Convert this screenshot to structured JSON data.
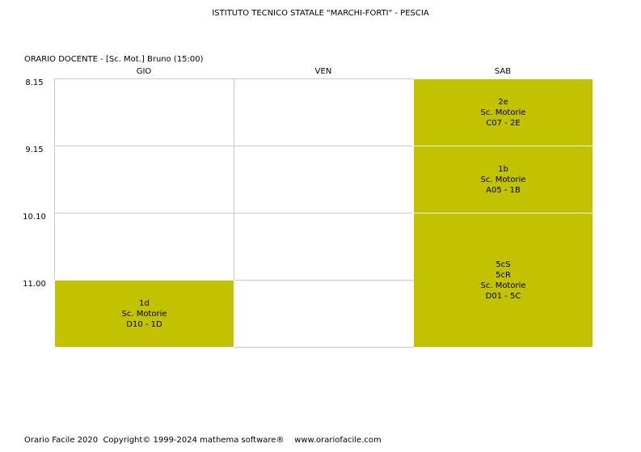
{
  "header": {
    "school": "ISTITUTO TECNICO STATALE \"MARCHI-FORTI\" - PESCIA",
    "teacher_line": "ORARIO DOCENTE   -   [Sc. Mot.] Bruno  (15:00)"
  },
  "timetable": {
    "days": [
      "GIO",
      "VEN",
      "SAB"
    ],
    "times": [
      "8.15",
      "9.15",
      "10.10",
      "11.00"
    ],
    "lesson_color": "#c2c200",
    "lessons": [
      {
        "day": "SAB",
        "start_slot": 1,
        "slots": 1,
        "lines": [
          "2e",
          "Sc. Motorie",
          "C07 - 2E"
        ]
      },
      {
        "day": "SAB",
        "start_slot": 2,
        "slots": 1,
        "lines": [
          "1b",
          "Sc. Motorie",
          "A05 - 1B"
        ]
      },
      {
        "day": "SAB",
        "start_slot": 3,
        "slots": 2,
        "lines": [
          "5cS",
          "5cR",
          "Sc. Motorie",
          "D01 - 5C"
        ]
      },
      {
        "day": "GIO",
        "start_slot": 4,
        "slots": 1,
        "lines": [
          "1d",
          "Sc. Motorie",
          "D10 - 1D"
        ]
      }
    ]
  },
  "footer": {
    "product": "Orario Facile 2020",
    "copyright": "Copyright© 1999-2024 mathema software®",
    "website": "www.orariofacile.com"
  }
}
